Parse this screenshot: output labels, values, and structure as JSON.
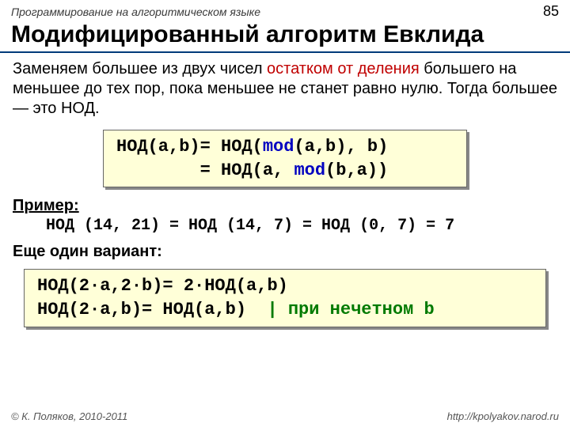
{
  "header": {
    "doc_title": "Программирование на алгоритмическом языке",
    "page_number": "85"
  },
  "title": "Модифицированный алгоритм Евклида",
  "paragraph": {
    "pre": "Заменяем большее из двух чисел ",
    "highlight": "остатком от деления",
    "post": " большего на меньшее до тех пор, пока меньшее не станет равно нулю. Тогда большее — это НОД."
  },
  "code1": {
    "l1_a": "НОД(a,b)= НОД(",
    "l1_mod": "mod",
    "l1_b": "(a,b), b)",
    "l2_a": "        = НОД(a, ",
    "l2_mod": "mod",
    "l2_b": "(b,a))"
  },
  "example": {
    "label": "Пример:",
    "line": "НОД (14, 21) = НОД (14, 7) = НОД (0, 7) = 7"
  },
  "variant": {
    "label": "Еще один вариант:"
  },
  "code2": {
    "l1": "НОД(2·a,2·b)= 2·НОД(a,b)",
    "l2_a": "НОД(2·a,b)= НОД(a,b)  ",
    "l2_green": "| при нечетном b"
  },
  "footer": {
    "left": "© К. Поляков, 2010-2011",
    "right": "http://kpolyakov.narod.ru"
  },
  "colors": {
    "rule": "#003a7a",
    "codebox_bg": "#ffffd8",
    "highlight_red": "#c00000",
    "keyword_blue": "#0000c0",
    "keyword_green": "#007a00"
  }
}
